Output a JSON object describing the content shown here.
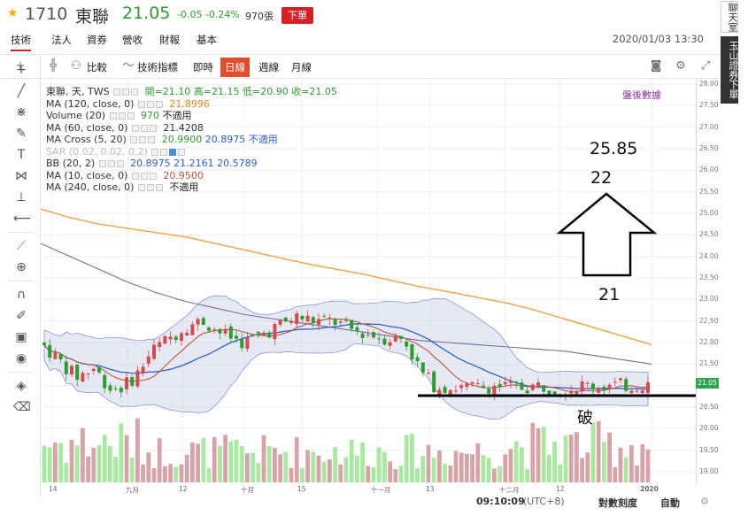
{
  "header": {
    "code": "1710",
    "name": "東聯",
    "price": "21.05",
    "change": "-0.05 -0.24%",
    "volume": "970張",
    "order_button": "下單",
    "datetime": "2020/01/03 13:30"
  },
  "tabs": [
    "技術",
    "法人",
    "資券",
    "營收",
    "財報",
    "基本"
  ],
  "toolbar": {
    "compare": "比較",
    "indicators": "技術指標",
    "intraday": "即時",
    "periods": [
      "日線",
      "週線",
      "月線"
    ]
  },
  "legend": {
    "main": {
      "name": "東聯, 天, TWS",
      "text": "開=21.10 高=21.15 低=20.90 收=21.05"
    },
    "rows": [
      {
        "name": "MA (120, close, 0)",
        "value": "21.8996"
      },
      {
        "name": "Volume (20)",
        "value": "970",
        "extra": "不適用"
      },
      {
        "name": "MA (60, close, 0)",
        "value": "21.4208"
      },
      {
        "name": "MA Cross (5, 20)",
        "value": "20.9900",
        "value2": "20.8975",
        "extra": "不適用"
      },
      {
        "name": "SAR (0.02, 0.02, 0.2)"
      },
      {
        "name": "BB (20, 2)",
        "value": "20.8975",
        "value2": "21.2161",
        "value3": "20.5789"
      },
      {
        "name": "MA (10, close, 0)",
        "value": "20.9500"
      },
      {
        "name": "MA (240, close, 0)",
        "extra": "不適用"
      }
    ],
    "after_hours_link": "盤後數據"
  },
  "annotations": {
    "target_high": "25.85",
    "target_mid": "22",
    "target_low": "21",
    "break_label": "破"
  },
  "price_axis": {
    "ticks": [
      "28.00",
      "27.50",
      "27.00",
      "26.50",
      "26.00",
      "25.50",
      "25.00",
      "24.50",
      "24.00",
      "23.50",
      "23.00",
      "22.50",
      "22.00",
      "21.50",
      "21.00",
      "20.50",
      "20.00",
      "19.50",
      "19.00"
    ],
    "last_price": "21.05"
  },
  "date_axis": [
    "14",
    "九月",
    "12",
    "十月",
    "15",
    "十一月",
    "13",
    "十二月",
    "12",
    "2020"
  ],
  "status": {
    "time": "09:10:09",
    "tz": "(UTC+8)",
    "log_scale": "對數刻度",
    "auto": "自動"
  },
  "side_links": {
    "chat": "聊天室",
    "broker": "玉山證券下單"
  },
  "colors": {
    "up": "#d44a4f",
    "down": "#2e9b2e",
    "ma120": "#f0a040",
    "ma60": "#7a6a9c",
    "ma10": "#c0563a",
    "ma20": "#2a5fcf",
    "band": "#b8bfe0",
    "vol_up": "#d8a3a8",
    "vol_down": "#a8e8a0"
  },
  "chart_data": {
    "type": "candlestick",
    "series": [
      {
        "name": "MA (120, close, 0)",
        "values": [
          25.1,
          24.9,
          24.75,
          24.65,
          24.55,
          24.45,
          24.3,
          24.15,
          24.0,
          23.85,
          23.72,
          23.6,
          23.45,
          23.3,
          23.18,
          23.05,
          22.92,
          22.75,
          22.55,
          22.35,
          22.15,
          21.95
        ]
      },
      {
        "name": "MA (60, close, 0)",
        "values": [
          24.3,
          24.0,
          23.7,
          23.4,
          23.15,
          22.95,
          22.8,
          22.65,
          22.55,
          22.45,
          22.35,
          22.25,
          22.15,
          22.05,
          22.0,
          21.95,
          21.9,
          21.85,
          21.8,
          21.7,
          21.6,
          21.5
        ]
      }
    ]
  }
}
